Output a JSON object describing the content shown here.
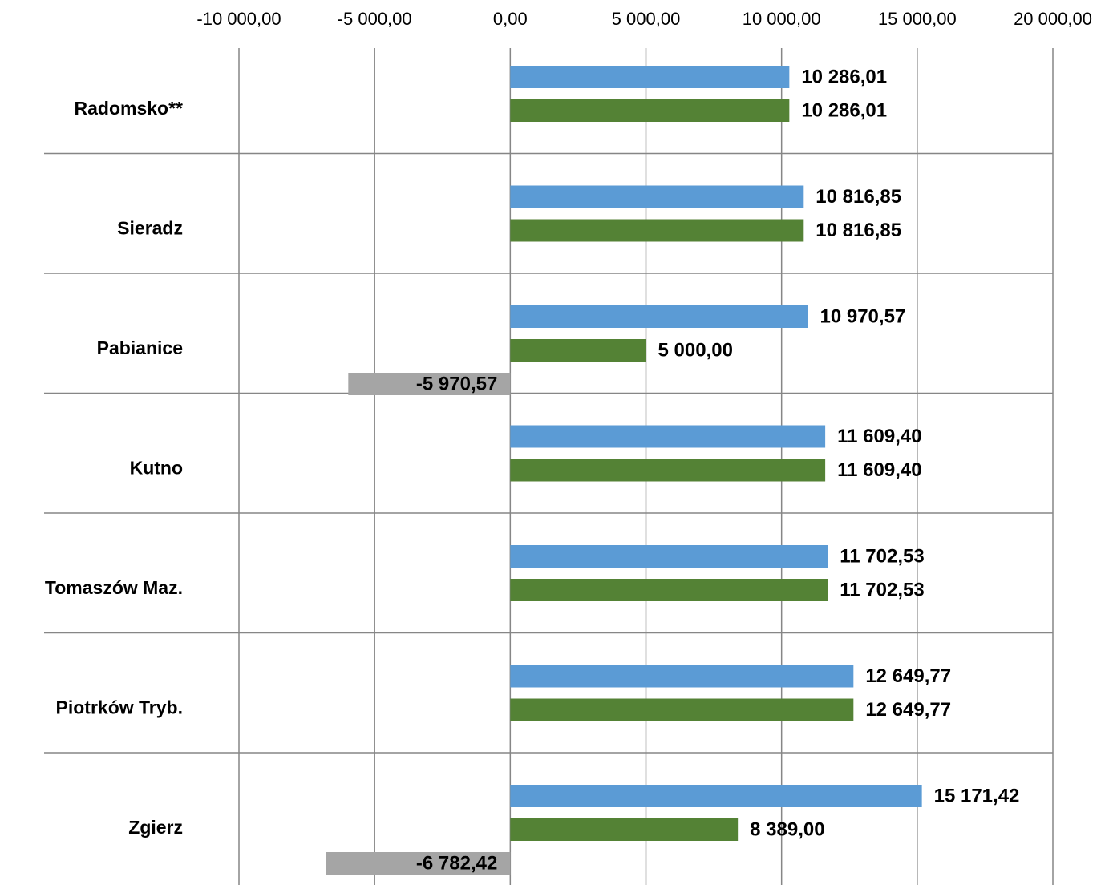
{
  "chart_data": {
    "type": "bar",
    "orientation": "horizontal",
    "categories": [
      "Radomsko**",
      "Sieradz",
      "Pabianice",
      "Kutno",
      "Tomaszów Maz.",
      "Piotrków Tryb.",
      "Zgierz"
    ],
    "series": [
      {
        "color": "#5b9bd5",
        "values": [
          10286.01,
          10816.85,
          10970.57,
          11609.4,
          11702.53,
          12649.77,
          15171.42
        ],
        "value_labels": [
          "10 286,01",
          "10 816,85",
          "10 970,57",
          "11 609,40",
          "11 702,53",
          "12 649,77",
          "15 171,42"
        ]
      },
      {
        "color": "#548235",
        "values": [
          10286.01,
          10816.85,
          5000.0,
          11609.4,
          11702.53,
          12649.77,
          8389.0
        ],
        "value_labels": [
          "10 286,01",
          "10 816,85",
          "5 000,00",
          "11 609,40",
          "11 702,53",
          "12 649,77",
          "8 389,00"
        ]
      },
      {
        "color": "#a5a5a5",
        "values": [
          null,
          null,
          -5970.57,
          null,
          null,
          null,
          -6782.42
        ],
        "value_labels": [
          null,
          null,
          "-5 970,57",
          null,
          null,
          null,
          "-6 782,42"
        ]
      }
    ],
    "xlim": [
      -10000,
      20000
    ],
    "xticks": [
      {
        "value": -10000,
        "label": "-10 000,00"
      },
      {
        "value": -5000,
        "label": "-5 000,00"
      },
      {
        "value": 0,
        "label": "0,00"
      },
      {
        "value": 5000,
        "label": "5 000,00"
      },
      {
        "value": 10000,
        "label": "10 000,00"
      },
      {
        "value": 15000,
        "label": "15 000,00"
      },
      {
        "value": 20000,
        "label": "20 000,00"
      }
    ],
    "grid": true
  }
}
